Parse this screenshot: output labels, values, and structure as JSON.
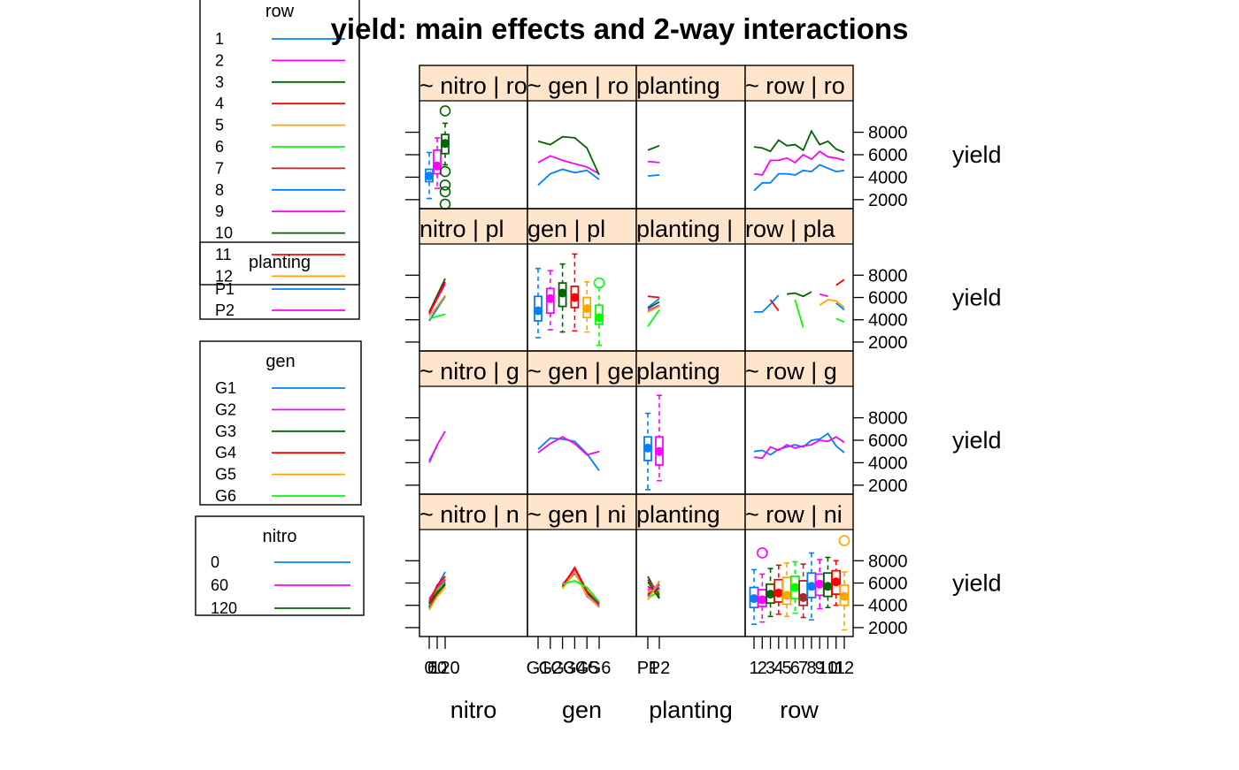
{
  "chart_data": {
    "type": "line",
    "title": "yield: main effects and 2-way interactions",
    "response": "yield",
    "factors": [
      "nitro",
      "gen",
      "planting",
      "row"
    ],
    "x_axis_labels": [
      "nitro",
      "gen",
      "planting",
      "row"
    ],
    "y_axis_label": "yield",
    "ylim": [
      1200,
      10800
    ],
    "y_ticks": [
      2000,
      4000,
      6000,
      8000
    ],
    "levels": {
      "nitro": [
        "0",
        "60",
        "120"
      ],
      "gen": [
        "G1",
        "G2",
        "G3",
        "G4",
        "G5",
        "G6"
      ],
      "planting": [
        "P1",
        "P2"
      ],
      "row": [
        "1",
        "2",
        "3",
        "4",
        "5",
        "6",
        "7",
        "8",
        "9",
        "10",
        "11",
        "12"
      ]
    },
    "strip_labels": {
      "nitro": [
        " ~ nitro | ro",
        " nitro | pl",
        " ~ nitro | g",
        " ~ nitro | n"
      ],
      "gen": [
        " ~ gen | ro",
        " gen | pl",
        " ~ gen | ge",
        " ~ gen | ni"
      ],
      "planting": [
        " planting",
        "planting | ",
        " planting",
        " planting"
      ],
      "row": [
        " ~ row | ro",
        " row | pla",
        " ~ row | g",
        " ~ row | ni"
      ]
    },
    "colors": {
      "row": [
        "#0080ff",
        "#ff00ff",
        "#006400",
        "#ff0000",
        "#ffa500",
        "#00ff00",
        "#a52a2a",
        "#0080ff",
        "#ff00ff",
        "#006400",
        "#ff0000",
        "#ffa500"
      ],
      "planting": [
        "#0080ff",
        "#ff00ff"
      ],
      "gen": [
        "#0080ff",
        "#ff00ff",
        "#006400",
        "#ff0000",
        "#ffa500",
        "#00ff00"
      ],
      "nitro": [
        "#0080ff",
        "#ff00ff",
        "#006400"
      ]
    },
    "legends": [
      {
        "title": "row",
        "labels": [
          "1",
          "2",
          "3",
          "4",
          "5",
          "6",
          "7",
          "8",
          "9",
          "10",
          "11",
          "12"
        ]
      },
      {
        "title": "planting",
        "labels": [
          "P1",
          "P2"
        ]
      },
      {
        "title": "gen",
        "labels": [
          "G1",
          "G2",
          "G3",
          "G4",
          "G5",
          "G6"
        ]
      },
      {
        "title": "nitro",
        "labels": [
          "0",
          "60",
          "120"
        ]
      }
    ],
    "panels": [
      {
        "row": "row",
        "col": "nitro",
        "kind": "interaction",
        "series": [
          {
            "values": [
              3800,
              5200,
              6300
            ]
          },
          {
            "values": [
              4200,
              5400,
              6000
            ]
          },
          {
            "values": [
              4400,
              5700,
              6100
            ]
          },
          {
            "values": [
              3900,
              5000,
              5900
            ]
          },
          {
            "values": [
              4500,
              5400,
              6500
            ]
          },
          {
            "values": [
              4000,
              5300,
              6200
            ]
          },
          {
            "values": [
              3700,
              4900,
              6000
            ]
          },
          {
            "values": [
              4300,
              5700,
              7000
            ]
          },
          {
            "values": [
              4600,
              5600,
              6300
            ]
          },
          {
            "values": [
              4100,
              5200,
              5800
            ]
          },
          {
            "values": [
              4200,
              5800,
              6600
            ]
          },
          {
            "values": [
              3600,
              4800,
              5600
            ]
          }
        ]
      },
      {
        "row": "row",
        "col": "gen",
        "kind": "interaction",
        "series": [
          {
            "values": [
              null,
              null,
              5800,
              7300,
              5000,
              4000
            ]
          },
          {
            "values": [
              null,
              null,
              5900,
              7100,
              4800,
              3900
            ]
          },
          {
            "values": [
              null,
              null,
              5600,
              6900,
              5100,
              4200
            ]
          },
          {
            "values": [
              null,
              null,
              5700,
              7400,
              5300,
              4100
            ]
          },
          {
            "values": [
              null,
              null,
              5500,
              7000,
              4900,
              3800
            ]
          },
          {
            "values": [
              null,
              null,
              5900,
              6200,
              5600,
              4300
            ]
          }
        ]
      },
      {
        "row": "row",
        "col": "planting",
        "kind": "interaction",
        "series": [
          {
            "values": [
              5200,
              5600
            ]
          },
          {
            "values": [
              4900,
              6100
            ]
          },
          {
            "values": [
              6600,
              4700
            ]
          },
          {
            "values": [
              5700,
              4900
            ]
          },
          {
            "values": [
              5100,
              6000
            ]
          },
          {
            "values": [
              4600,
              5300
            ]
          },
          {
            "values": [
              6300,
              5000
            ]
          },
          {
            "values": [
              4800,
              5900
            ]
          },
          {
            "values": [
              5400,
              5800
            ]
          },
          {
            "values": [
              6100,
              4600
            ]
          },
          {
            "values": [
              5000,
              5500
            ]
          },
          {
            "values": [
              4500,
              6200
            ]
          }
        ]
      },
      {
        "row": "row",
        "col": "row",
        "kind": "boxplot",
        "boxes": [
          {
            "median": 4600,
            "q1": 3800,
            "q3": 5600,
            "lo": 2300,
            "hi": 7200,
            "out": []
          },
          {
            "median": 4500,
            "q1": 3900,
            "q3": 5400,
            "lo": 2500,
            "hi": 6800,
            "out": [
              8700
            ]
          },
          {
            "median": 5000,
            "q1": 4200,
            "q3": 5900,
            "lo": 3000,
            "hi": 7300,
            "out": []
          },
          {
            "median": 5100,
            "q1": 4300,
            "q3": 6300,
            "lo": 3200,
            "hi": 7600,
            "out": []
          },
          {
            "median": 4900,
            "q1": 4100,
            "q3": 6500,
            "lo": 3000,
            "hi": 7800,
            "out": []
          },
          {
            "median": 5600,
            "q1": 4600,
            "q3": 6600,
            "lo": 3300,
            "hi": 7900,
            "out": []
          },
          {
            "median": 4700,
            "q1": 4000,
            "q3": 6200,
            "lo": 2900,
            "hi": 7700,
            "out": []
          },
          {
            "median": 5700,
            "q1": 4700,
            "q3": 6900,
            "lo": 2700,
            "hi": 8700,
            "out": []
          },
          {
            "median": 5900,
            "q1": 4900,
            "q3": 6800,
            "lo": 3700,
            "hi": 8100,
            "out": []
          },
          {
            "median": 5700,
            "q1": 4800,
            "q3": 6900,
            "lo": 3800,
            "hi": 8300,
            "out": []
          },
          {
            "median": 6100,
            "q1": 5000,
            "q3": 7100,
            "lo": 4000,
            "hi": 8000,
            "out": []
          },
          {
            "median": 4800,
            "q1": 4000,
            "q3": 5800,
            "lo": 1800,
            "hi": 7000,
            "out": [
              9800
            ]
          }
        ]
      },
      {
        "row": "planting",
        "col": "nitro",
        "kind": "interaction",
        "series": [
          {
            "values": [
              4200,
              5500,
              null
            ]
          },
          {
            "values": [
              4000,
              5600,
              6800
            ]
          }
        ]
      },
      {
        "row": "planting",
        "col": "gen",
        "kind": "interaction",
        "series": [
          {
            "values": [
              5200,
              6200,
              6100,
              5900,
              4800,
              3300
            ]
          },
          {
            "values": [
              4900,
              5700,
              6300,
              5700,
              4700,
              5000
            ]
          }
        ]
      },
      {
        "row": "planting",
        "col": "planting",
        "kind": "boxplot",
        "boxes": [
          {
            "median": 5300,
            "q1": 4200,
            "q3": 6300,
            "lo": 1600,
            "hi": 8400,
            "out": []
          },
          {
            "median": 5000,
            "q1": 3800,
            "q3": 6300,
            "lo": 2400,
            "hi": 10000,
            "out": []
          }
        ]
      },
      {
        "row": "planting",
        "col": "row",
        "kind": "interaction",
        "series": [
          {
            "values": [
              5000,
              5100,
              4700,
              5200,
              5400,
              5600,
              5400,
              6000,
              6100,
              6600,
              5500,
              4900
            ]
          },
          {
            "values": [
              4500,
              4400,
              5400,
              5100,
              5600,
              5300,
              5500,
              5600,
              6000,
              5900,
              6300,
              5800
            ]
          }
        ]
      },
      {
        "row": "gen",
        "col": "nitro",
        "kind": "interaction",
        "series": [
          {
            "values": [
              3900,
              5000,
              6100
            ]
          },
          {
            "values": [
              4500,
              5900,
              7200
            ]
          },
          {
            "values": [
              4700,
              6200,
              7700
            ]
          },
          {
            "values": [
              4600,
              6000,
              7400
            ]
          },
          {
            "values": [
              4300,
              5200,
              6200
            ]
          },
          {
            "values": [
              4100,
              4300,
              4500
            ]
          }
        ]
      },
      {
        "row": "gen",
        "col": "gen",
        "kind": "boxplot",
        "boxes": [
          {
            "median": 4800,
            "q1": 3900,
            "q3": 6100,
            "lo": 2400,
            "hi": 8600,
            "out": []
          },
          {
            "median": 5900,
            "q1": 4600,
            "q3": 6800,
            "lo": 3100,
            "hi": 8400,
            "out": []
          },
          {
            "median": 6400,
            "q1": 5200,
            "q3": 7300,
            "lo": 2900,
            "hi": 9000,
            "out": []
          },
          {
            "median": 6000,
            "q1": 5100,
            "q3": 7000,
            "lo": 3000,
            "hi": 9900,
            "out": []
          },
          {
            "median": 5000,
            "q1": 4200,
            "q3": 6000,
            "lo": 2900,
            "hi": 7400,
            "out": []
          },
          {
            "median": 4200,
            "q1": 3600,
            "q3": 5300,
            "lo": 1700,
            "hi": 6900,
            "out": [
              7300
            ]
          }
        ]
      },
      {
        "row": "gen",
        "col": "planting",
        "kind": "interaction",
        "series": [
          {
            "values": [
              5100,
              5900
            ]
          },
          {
            "values": [
              4800,
              5300
            ]
          },
          {
            "values": [
              5000,
              5600
            ]
          },
          {
            "values": [
              6100,
              6000
            ]
          },
          {
            "values": [
              4700,
              5200
            ]
          },
          {
            "values": [
              3400,
              4900
            ]
          }
        ]
      },
      {
        "row": "gen",
        "col": "row",
        "kind": "interaction",
        "series": [
          {
            "values": [
              4700,
              4700,
              5400,
              6200,
              null,
              null,
              null,
              null,
              null,
              null,
              5500,
              4900
            ]
          },
          {
            "values": [
              null,
              null,
              null,
              null,
              null,
              null,
              null,
              null,
              6300,
              6100,
              null,
              null
            ]
          },
          {
            "values": [
              null,
              null,
              null,
              null,
              6300,
              6400,
              6100,
              6500,
              null,
              null,
              null,
              null
            ]
          },
          {
            "values": [
              null,
              null,
              5800,
              4800,
              null,
              null,
              null,
              null,
              null,
              null,
              7100,
              7600
            ]
          },
          {
            "values": [
              null,
              null,
              null,
              null,
              null,
              null,
              null,
              null,
              5300,
              5800,
              5700,
              5100
            ]
          },
          {
            "values": [
              null,
              null,
              null,
              null,
              null,
              5800,
              3300,
              null,
              null,
              null,
              4100,
              3800
            ]
          }
        ]
      },
      {
        "row": "nitro",
        "col": "nitro",
        "kind": "boxplot",
        "boxes": [
          {
            "median": 4100,
            "q1": 3600,
            "q3": 4700,
            "lo": 2100,
            "hi": 6200,
            "out": []
          },
          {
            "median": 5000,
            "q1": 4300,
            "q3": 6400,
            "lo": 3000,
            "hi": 7500,
            "out": []
          },
          {
            "median": 7000,
            "q1": 6100,
            "q3": 7800,
            "lo": 5100,
            "hi": 8800,
            "out": [
              9900,
              4500,
              3300,
              2700,
              1600
            ]
          }
        ]
      },
      {
        "row": "nitro",
        "col": "gen",
        "kind": "interaction",
        "series": [
          {
            "values": [
              3300,
              4300,
              4700,
              4400,
              4600,
              3800
            ]
          },
          {
            "values": [
              5300,
              5900,
              5500,
              5200,
              4900,
              4300
            ]
          },
          {
            "values": [
              7200,
              6900,
              7600,
              7500,
              6600,
              4200
            ]
          }
        ]
      },
      {
        "row": "nitro",
        "col": "planting",
        "kind": "interaction",
        "series": [
          {
            "values": [
              4100,
              4200
            ]
          },
          {
            "values": [
              5400,
              5300
            ]
          },
          {
            "values": [
              6400,
              6800
            ]
          }
        ]
      },
      {
        "row": "nitro",
        "col": "row",
        "kind": "interaction",
        "series": [
          {
            "values": [
              2800,
              3500,
              3500,
              4300,
              4300,
              4200,
              4600,
              4500,
              5100,
              4800,
              4500,
              4600
            ]
          },
          {
            "values": [
              4300,
              4200,
              5500,
              5500,
              5700,
              5300,
              6000,
              5600,
              6300,
              5800,
              5700,
              5500
            ]
          },
          {
            "values": [
              6700,
              6600,
              6300,
              7300,
              6800,
              6900,
              6400,
              8100,
              6900,
              7200,
              6500,
              6200
            ]
          }
        ]
      }
    ]
  }
}
